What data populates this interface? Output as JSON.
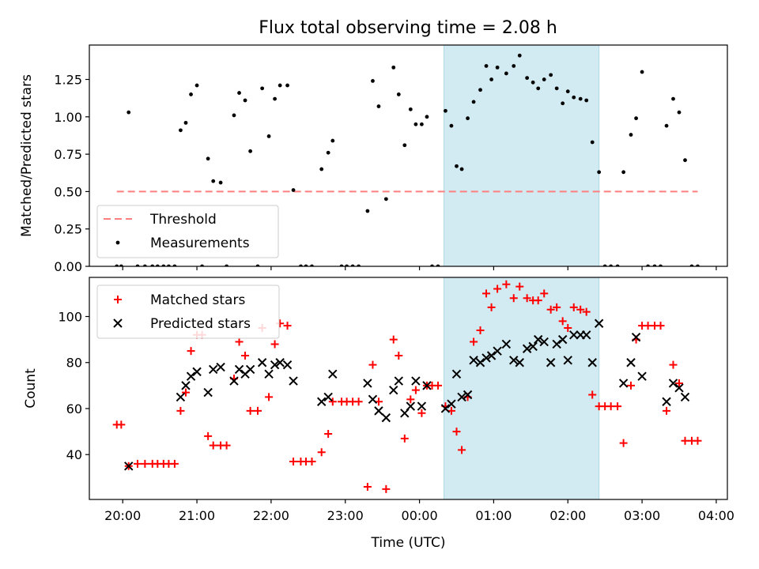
{
  "title": "Flux total observing time = 2.08 h",
  "colors": {
    "threshold": "#ff7f7f",
    "measurement": "#000000",
    "matched": "#ff0000",
    "predicted": "#000000",
    "highlight": "#add8e6"
  },
  "chart_data": [
    {
      "type": "scatter",
      "ylabel": "Matched/Predicted stars",
      "xlabel": "",
      "ylim": [
        0,
        1.48
      ],
      "yticks": [
        "0.00",
        "0.25",
        "0.50",
        "0.75",
        "1.00",
        "1.25"
      ],
      "yticks_values": [
        0,
        0.25,
        0.5,
        0.75,
        1.0,
        1.25
      ],
      "xlim_hours": [
        19.55,
        28.15
      ],
      "highlight_span_hours": [
        24.33,
        26.42
      ],
      "legend": [
        "Threshold",
        "Measurements"
      ],
      "legend_position": "lower-left",
      "threshold": {
        "name": "Threshold",
        "value": 0.5,
        "x_range_hours": [
          19.92,
          27.75
        ]
      },
      "series": [
        {
          "name": "Measurements",
          "points": [
            [
              19.92,
              0
            ],
            [
              19.98,
              0
            ],
            [
              20.08,
              1.03
            ],
            [
              20.2,
              0
            ],
            [
              20.3,
              0
            ],
            [
              20.4,
              0
            ],
            [
              20.47,
              0
            ],
            [
              20.55,
              0
            ],
            [
              20.62,
              0
            ],
            [
              20.7,
              0
            ],
            [
              20.78,
              0.91
            ],
            [
              20.85,
              0.96
            ],
            [
              20.92,
              1.15
            ],
            [
              21.0,
              1.21
            ],
            [
              21.07,
              0
            ],
            [
              21.15,
              0.72
            ],
            [
              21.22,
              0.57
            ],
            [
              21.32,
              0.56
            ],
            [
              21.4,
              0
            ],
            [
              21.5,
              1.01
            ],
            [
              21.57,
              1.16
            ],
            [
              21.65,
              1.11
            ],
            [
              21.72,
              0.77
            ],
            [
              21.82,
              0
            ],
            [
              21.88,
              1.19
            ],
            [
              21.97,
              0.87
            ],
            [
              22.05,
              1.12
            ],
            [
              22.12,
              1.21
            ],
            [
              22.22,
              1.21
            ],
            [
              22.3,
              0.51
            ],
            [
              22.4,
              0
            ],
            [
              22.47,
              0
            ],
            [
              22.55,
              0
            ],
            [
              22.68,
              0.65
            ],
            [
              22.77,
              0.76
            ],
            [
              22.83,
              0.84
            ],
            [
              22.95,
              0
            ],
            [
              23.02,
              0
            ],
            [
              23.1,
              0
            ],
            [
              23.18,
              0
            ],
            [
              23.3,
              0.37
            ],
            [
              23.37,
              1.24
            ],
            [
              23.45,
              1.07
            ],
            [
              23.55,
              0.45
            ],
            [
              23.65,
              1.33
            ],
            [
              23.72,
              1.15
            ],
            [
              23.8,
              0.81
            ],
            [
              23.88,
              1.05
            ],
            [
              23.95,
              0.95
            ],
            [
              24.03,
              0.95
            ],
            [
              24.1,
              1.0
            ],
            [
              24.17,
              0
            ],
            [
              24.25,
              0
            ],
            [
              24.35,
              1.04
            ],
            [
              24.43,
              0.94
            ],
            [
              24.5,
              0.67
            ],
            [
              24.57,
              0.65
            ],
            [
              24.65,
              0.99
            ],
            [
              24.73,
              1.1
            ],
            [
              24.82,
              1.18
            ],
            [
              24.9,
              1.34
            ],
            [
              24.97,
              1.25
            ],
            [
              25.05,
              1.33
            ],
            [
              25.17,
              1.29
            ],
            [
              25.27,
              1.34
            ],
            [
              25.35,
              1.41
            ],
            [
              25.45,
              1.26
            ],
            [
              25.53,
              1.23
            ],
            [
              25.6,
              1.19
            ],
            [
              25.68,
              1.25
            ],
            [
              25.77,
              1.28
            ],
            [
              25.85,
              1.19
            ],
            [
              25.93,
              1.09
            ],
            [
              26.0,
              1.17
            ],
            [
              26.08,
              1.13
            ],
            [
              26.17,
              1.12
            ],
            [
              26.25,
              1.11
            ],
            [
              26.33,
              0.83
            ],
            [
              26.42,
              0.63
            ],
            [
              26.5,
              0
            ],
            [
              26.58,
              0
            ],
            [
              26.67,
              0
            ],
            [
              26.75,
              0.63
            ],
            [
              26.85,
              0.88
            ],
            [
              26.92,
              0.99
            ],
            [
              27.0,
              1.3
            ],
            [
              27.08,
              0
            ],
            [
              27.17,
              0
            ],
            [
              27.25,
              0
            ],
            [
              27.33,
              0.94
            ],
            [
              27.42,
              1.12
            ],
            [
              27.5,
              1.03
            ],
            [
              27.58,
              0.71
            ],
            [
              27.67,
              0
            ],
            [
              27.75,
              0
            ]
          ]
        }
      ]
    },
    {
      "type": "scatter",
      "ylabel": "Count",
      "xlabel": "Time (UTC)",
      "ylim": [
        20.5,
        117
      ],
      "yticks": [
        "40",
        "60",
        "80",
        "100"
      ],
      "yticks_values": [
        40,
        60,
        80,
        100
      ],
      "xlim_hours": [
        19.55,
        28.15
      ],
      "xticks": [
        "20:00",
        "21:00",
        "22:00",
        "23:00",
        "00:00",
        "01:00",
        "02:00",
        "03:00",
        "04:00"
      ],
      "xticks_hours": [
        20,
        21,
        22,
        23,
        24,
        25,
        26,
        27,
        28
      ],
      "highlight_span_hours": [
        24.33,
        26.42
      ],
      "legend": [
        "Matched stars",
        "Predicted stars"
      ],
      "legend_position": "upper-left",
      "series": [
        {
          "name": "Matched stars",
          "points": [
            [
              19.92,
              53
            ],
            [
              19.98,
              53
            ],
            [
              20.08,
              35
            ],
            [
              20.2,
              36
            ],
            [
              20.3,
              36
            ],
            [
              20.4,
              36
            ],
            [
              20.47,
              36
            ],
            [
              20.55,
              36
            ],
            [
              20.62,
              36
            ],
            [
              20.7,
              36
            ],
            [
              20.78,
              59
            ],
            [
              20.85,
              67
            ],
            [
              20.92,
              85
            ],
            [
              21.0,
              92
            ],
            [
              21.07,
              92
            ],
            [
              21.15,
              48
            ],
            [
              21.22,
              44
            ],
            [
              21.32,
              44
            ],
            [
              21.4,
              44
            ],
            [
              21.5,
              73
            ],
            [
              21.57,
              89
            ],
            [
              21.65,
              83
            ],
            [
              21.72,
              59
            ],
            [
              21.82,
              59
            ],
            [
              21.88,
              95
            ],
            [
              21.97,
              65
            ],
            [
              22.05,
              88
            ],
            [
              22.12,
              97
            ],
            [
              22.22,
              96
            ],
            [
              22.3,
              37
            ],
            [
              22.4,
              37
            ],
            [
              22.47,
              37
            ],
            [
              22.55,
              37
            ],
            [
              22.68,
              41
            ],
            [
              22.77,
              49
            ],
            [
              22.83,
              63
            ],
            [
              22.95,
              63
            ],
            [
              23.02,
              63
            ],
            [
              23.1,
              63
            ],
            [
              23.18,
              63
            ],
            [
              23.3,
              26
            ],
            [
              23.37,
              79
            ],
            [
              23.45,
              63
            ],
            [
              23.55,
              25
            ],
            [
              23.65,
              90
            ],
            [
              23.72,
              83
            ],
            [
              23.8,
              47
            ],
            [
              23.88,
              64
            ],
            [
              23.95,
              68
            ],
            [
              24.03,
              58
            ],
            [
              24.1,
              70
            ],
            [
              24.17,
              70
            ],
            [
              24.25,
              70
            ],
            [
              24.35,
              61
            ],
            [
              24.43,
              59
            ],
            [
              24.5,
              50
            ],
            [
              24.57,
              42
            ],
            [
              24.65,
              65
            ],
            [
              24.73,
              89
            ],
            [
              24.82,
              94
            ],
            [
              24.9,
              110
            ],
            [
              24.97,
              104
            ],
            [
              25.05,
              112
            ],
            [
              25.17,
              114
            ],
            [
              25.27,
              108
            ],
            [
              25.35,
              113
            ],
            [
              25.45,
              108
            ],
            [
              25.53,
              107
            ],
            [
              25.6,
              107
            ],
            [
              25.68,
              110
            ],
            [
              25.77,
              103
            ],
            [
              25.85,
              104
            ],
            [
              25.93,
              98
            ],
            [
              26.0,
              95
            ],
            [
              26.08,
              104
            ],
            [
              26.17,
              103
            ],
            [
              26.25,
              102
            ],
            [
              26.33,
              66
            ],
            [
              26.42,
              61
            ],
            [
              26.5,
              61
            ],
            [
              26.58,
              61
            ],
            [
              26.67,
              61
            ],
            [
              26.75,
              45
            ],
            [
              26.85,
              70
            ],
            [
              26.92,
              90
            ],
            [
              27.0,
              96
            ],
            [
              27.08,
              96
            ],
            [
              27.17,
              96
            ],
            [
              27.25,
              96
            ],
            [
              27.33,
              59
            ],
            [
              27.42,
              79
            ],
            [
              27.5,
              71
            ],
            [
              27.58,
              46
            ],
            [
              27.67,
              46
            ],
            [
              27.75,
              46
            ]
          ]
        },
        {
          "name": "Predicted stars",
          "points": [
            [
              20.08,
              35
            ],
            [
              20.78,
              65
            ],
            [
              20.85,
              70
            ],
            [
              20.92,
              74
            ],
            [
              21.0,
              76
            ],
            [
              21.15,
              67
            ],
            [
              21.22,
              77
            ],
            [
              21.32,
              78
            ],
            [
              21.5,
              72
            ],
            [
              21.57,
              77
            ],
            [
              21.65,
              75
            ],
            [
              21.72,
              77
            ],
            [
              21.88,
              80
            ],
            [
              21.97,
              75
            ],
            [
              22.05,
              79
            ],
            [
              22.12,
              80
            ],
            [
              22.22,
              79
            ],
            [
              22.3,
              72
            ],
            [
              22.68,
              63
            ],
            [
              22.77,
              65
            ],
            [
              22.83,
              75
            ],
            [
              23.3,
              71
            ],
            [
              23.37,
              64
            ],
            [
              23.45,
              59
            ],
            [
              23.55,
              56
            ],
            [
              23.65,
              68
            ],
            [
              23.72,
              72
            ],
            [
              23.8,
              58
            ],
            [
              23.88,
              61
            ],
            [
              23.95,
              72
            ],
            [
              24.03,
              61
            ],
            [
              24.1,
              70
            ],
            [
              24.35,
              60
            ],
            [
              24.43,
              62
            ],
            [
              24.5,
              75
            ],
            [
              24.57,
              65
            ],
            [
              24.65,
              66
            ],
            [
              24.73,
              81
            ],
            [
              24.82,
              80
            ],
            [
              24.9,
              82
            ],
            [
              24.97,
              83
            ],
            [
              25.05,
              85
            ],
            [
              25.17,
              88
            ],
            [
              25.27,
              81
            ],
            [
              25.35,
              80
            ],
            [
              25.45,
              86
            ],
            [
              25.53,
              87
            ],
            [
              25.6,
              90
            ],
            [
              25.68,
              89
            ],
            [
              25.77,
              80
            ],
            [
              25.85,
              88
            ],
            [
              25.93,
              90
            ],
            [
              26.0,
              81
            ],
            [
              26.08,
              92
            ],
            [
              26.17,
              92
            ],
            [
              26.25,
              92
            ],
            [
              26.33,
              80
            ],
            [
              26.42,
              97
            ],
            [
              26.75,
              71
            ],
            [
              26.85,
              80
            ],
            [
              26.92,
              91
            ],
            [
              27.0,
              74
            ],
            [
              27.33,
              63
            ],
            [
              27.42,
              71
            ],
            [
              27.5,
              69
            ],
            [
              27.58,
              65
            ]
          ]
        }
      ]
    }
  ]
}
